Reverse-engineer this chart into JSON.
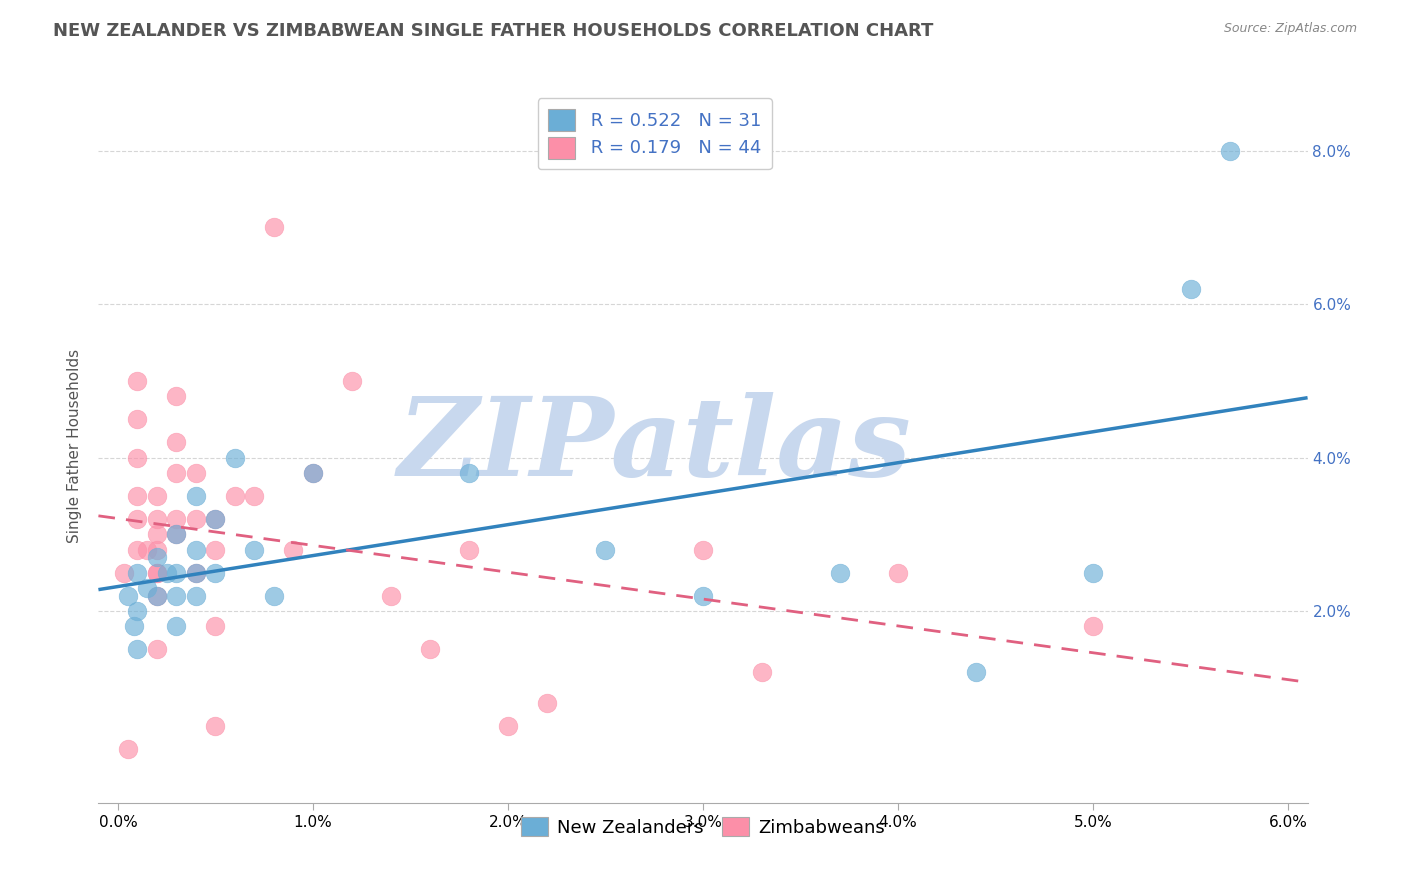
{
  "title": "NEW ZEALANDER VS ZIMBABWEAN SINGLE FATHER HOUSEHOLDS CORRELATION CHART",
  "source": "Source: ZipAtlas.com",
  "ylabel": "Single Father Households",
  "xlim": [
    -0.001,
    0.061
  ],
  "ylim": [
    -0.005,
    0.088
  ],
  "xticks": [
    0.0,
    0.01,
    0.02,
    0.03,
    0.04,
    0.05,
    0.06
  ],
  "xtick_labels": [
    "0.0%",
    "1.0%",
    "2.0%",
    "3.0%",
    "4.0%",
    "5.0%",
    "6.0%"
  ],
  "yticks_right": [
    0.02,
    0.04,
    0.06,
    0.08
  ],
  "ytick_right_labels": [
    "2.0%",
    "4.0%",
    "6.0%",
    "8.0%"
  ],
  "nz_color": "#6baed6",
  "zim_color": "#fc8fa8",
  "nz_line_color": "#3182bd",
  "zim_line_color": "#e06080",
  "nz_R": 0.522,
  "nz_N": 31,
  "zim_R": 0.179,
  "zim_N": 44,
  "nz_label": "New Zealanders",
  "zim_label": "Zimbabweans",
  "background_color": "#ffffff",
  "grid_color": "#cccccc",
  "watermark": "ZIPatlas",
  "watermark_color": "#c8d8ee",
  "legend_text_color": "#4472c4",
  "title_color": "#555555",
  "source_color": "#888888",
  "nz_scatter_x": [
    0.0005,
    0.0008,
    0.001,
    0.001,
    0.001,
    0.0015,
    0.002,
    0.002,
    0.0025,
    0.003,
    0.003,
    0.003,
    0.003,
    0.004,
    0.004,
    0.004,
    0.004,
    0.005,
    0.005,
    0.006,
    0.007,
    0.008,
    0.01,
    0.018,
    0.025,
    0.03,
    0.037,
    0.044,
    0.05,
    0.055,
    0.057
  ],
  "nz_scatter_y": [
    0.022,
    0.018,
    0.025,
    0.02,
    0.015,
    0.023,
    0.027,
    0.022,
    0.025,
    0.03,
    0.025,
    0.022,
    0.018,
    0.035,
    0.028,
    0.025,
    0.022,
    0.032,
    0.025,
    0.04,
    0.028,
    0.022,
    0.038,
    0.038,
    0.028,
    0.022,
    0.025,
    0.012,
    0.025,
    0.062,
    0.08
  ],
  "zim_scatter_x": [
    0.0003,
    0.0005,
    0.001,
    0.001,
    0.001,
    0.001,
    0.001,
    0.001,
    0.0015,
    0.002,
    0.002,
    0.002,
    0.002,
    0.002,
    0.002,
    0.002,
    0.002,
    0.003,
    0.003,
    0.003,
    0.003,
    0.003,
    0.004,
    0.004,
    0.004,
    0.005,
    0.005,
    0.005,
    0.005,
    0.006,
    0.007,
    0.008,
    0.009,
    0.01,
    0.012,
    0.014,
    0.016,
    0.018,
    0.02,
    0.022,
    0.03,
    0.033,
    0.04,
    0.05
  ],
  "zim_scatter_y": [
    0.025,
    0.002,
    0.028,
    0.032,
    0.035,
    0.04,
    0.045,
    0.05,
    0.028,
    0.025,
    0.03,
    0.032,
    0.035,
    0.022,
    0.025,
    0.028,
    0.015,
    0.03,
    0.032,
    0.038,
    0.042,
    0.048,
    0.032,
    0.038,
    0.025,
    0.032,
    0.028,
    0.018,
    0.005,
    0.035,
    0.035,
    0.07,
    0.028,
    0.038,
    0.05,
    0.022,
    0.015,
    0.028,
    0.005,
    0.008,
    0.028,
    0.012,
    0.025,
    0.018
  ],
  "title_fontsize": 13,
  "axis_fontsize": 11,
  "legend_fontsize": 13,
  "marker_size": 180
}
